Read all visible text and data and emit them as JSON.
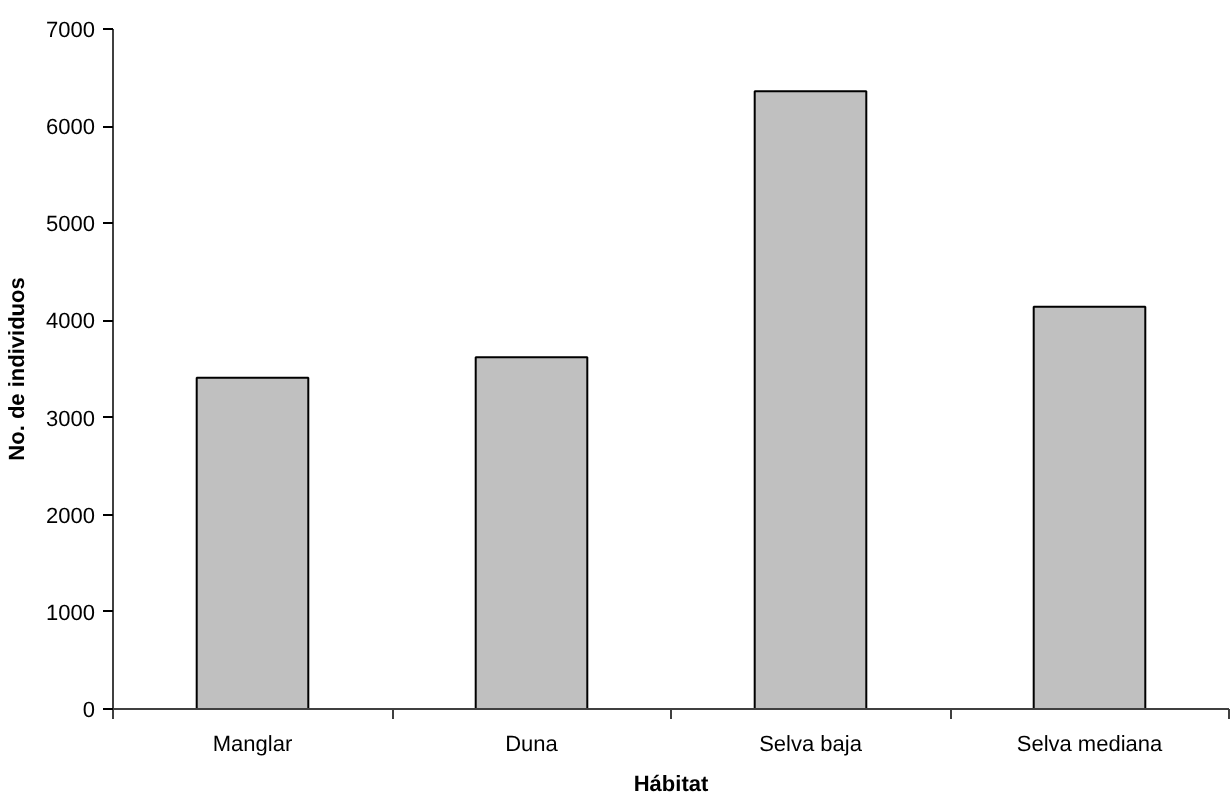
{
  "chart_data": {
    "type": "bar",
    "xlabel": "Hábitat",
    "ylabel": "No. de individuos",
    "categories": [
      "Manglar",
      "Duna",
      "Selva baja",
      "Selva mediana"
    ],
    "values": [
      3410,
      3620,
      6360,
      4140
    ],
    "color": "#c0c0c0",
    "ylim": [
      0,
      7000
    ],
    "yticks": [
      0,
      1000,
      2000,
      3000,
      4000,
      5000,
      6000,
      7000
    ],
    "grid": false
  }
}
